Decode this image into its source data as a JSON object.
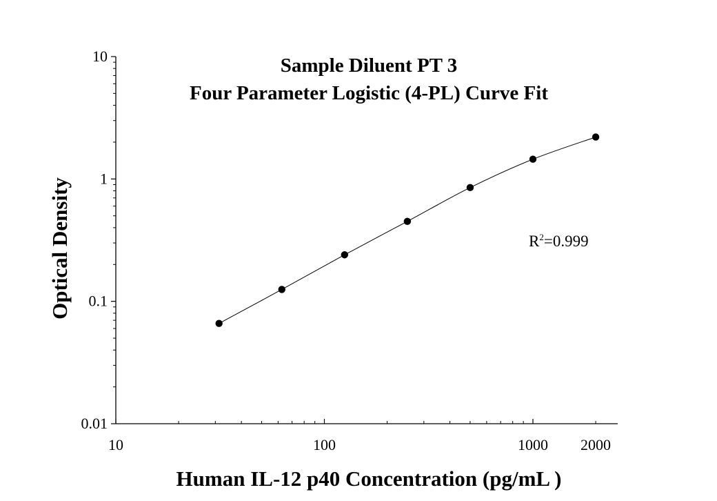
{
  "chart_data": {
    "type": "scatter",
    "title": "Sample Diluent PT 3",
    "subtitle": "Four Parameter Logistic (4-PL) Curve Fit",
    "xlabel": "Human IL-12 p40 Concentration (pg/mL )",
    "ylabel": "Optical Density",
    "x_scale": "log",
    "y_scale": "log",
    "xlim": [
      10,
      2000
    ],
    "ylim": [
      0.01,
      10
    ],
    "x_ticks": [
      "10",
      "100",
      "1000",
      "2000"
    ],
    "y_ticks": [
      "0.01",
      "0.1",
      "1",
      "10"
    ],
    "grid": false,
    "legend": "none",
    "fit": "4-PL",
    "annotation": {
      "r2_prefix": "R",
      "r2_exp": "2",
      "r2_value": "=0.999"
    },
    "points": [
      {
        "x": 31.25,
        "y": 0.066
      },
      {
        "x": 62.5,
        "y": 0.125
      },
      {
        "x": 125,
        "y": 0.24
      },
      {
        "x": 250,
        "y": 0.45
      },
      {
        "x": 500,
        "y": 0.85
      },
      {
        "x": 1000,
        "y": 1.45
      },
      {
        "x": 2000,
        "y": 2.2
      }
    ],
    "colors": {
      "points": "#000000",
      "line": "#000000"
    }
  }
}
